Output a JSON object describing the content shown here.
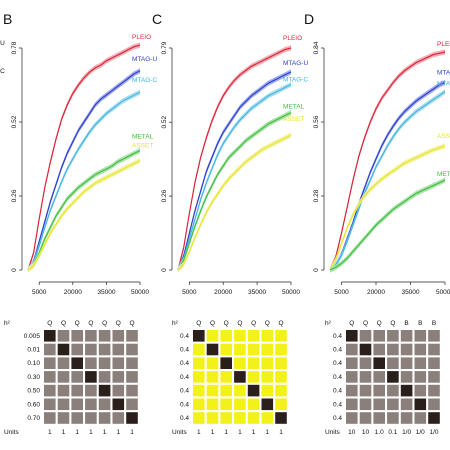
{
  "chart_data": [
    {
      "type": "line",
      "panel": "B",
      "x": [
        0,
        2500,
        5000,
        7500,
        10000,
        12500,
        15000,
        17500,
        20000,
        22500,
        25000,
        27500,
        30000,
        32500,
        35000,
        37500,
        40000,
        42500,
        45000,
        47500,
        50000
      ],
      "xticks": [
        "5000",
        "20000",
        "35000",
        "50000"
      ],
      "xtick_values": [
        5000,
        20000,
        35000,
        50000
      ],
      "yticks": [
        "0",
        "0.26",
        "0.52",
        "0.78"
      ],
      "ytick_values": [
        0,
        0.26,
        0.52,
        0.78
      ],
      "xlim": [
        0,
        50000
      ],
      "ylim": [
        0,
        0.78
      ],
      "series": [
        {
          "name": "PLEIO",
          "color": "#d7263d",
          "band": "#f3a6ae",
          "values": [
            0.0,
            0.06,
            0.18,
            0.29,
            0.38,
            0.46,
            0.53,
            0.58,
            0.62,
            0.65,
            0.675,
            0.695,
            0.71,
            0.72,
            0.735,
            0.745,
            0.755,
            0.765,
            0.775,
            0.785,
            0.79
          ]
        },
        {
          "name": "MTAG-U",
          "color": "#2e3fcc",
          "band": "#9aa6ee",
          "values": [
            0.0,
            0.03,
            0.1,
            0.17,
            0.24,
            0.3,
            0.36,
            0.41,
            0.45,
            0.49,
            0.52,
            0.55,
            0.58,
            0.6,
            0.615,
            0.63,
            0.645,
            0.66,
            0.675,
            0.69,
            0.7
          ]
        },
        {
          "name": "MTAG-C",
          "color": "#3fb6e0",
          "band": "#a8dcf0",
          "values": [
            0.0,
            0.025,
            0.085,
            0.15,
            0.21,
            0.26,
            0.31,
            0.355,
            0.39,
            0.425,
            0.455,
            0.485,
            0.51,
            0.53,
            0.55,
            0.565,
            0.58,
            0.595,
            0.605,
            0.615,
            0.625
          ]
        },
        {
          "name": "METAL",
          "color": "#3fbf3f",
          "band": "#a6e0a6",
          "values": [
            0.0,
            0.02,
            0.06,
            0.11,
            0.15,
            0.19,
            0.22,
            0.25,
            0.27,
            0.29,
            0.305,
            0.32,
            0.335,
            0.345,
            0.355,
            0.365,
            0.38,
            0.39,
            0.4,
            0.41,
            0.42
          ]
        },
        {
          "name": "ASSET",
          "color": "#e6e629",
          "band": "#f2f29a",
          "values": [
            0.0,
            0.015,
            0.05,
            0.09,
            0.13,
            0.16,
            0.19,
            0.215,
            0.235,
            0.255,
            0.275,
            0.29,
            0.305,
            0.315,
            0.325,
            0.335,
            0.345,
            0.355,
            0.365,
            0.375,
            0.385
          ]
        }
      ],
      "grid": false
    },
    {
      "type": "line",
      "panel": "C",
      "x": [
        0,
        2500,
        5000,
        7500,
        10000,
        12500,
        15000,
        17500,
        20000,
        22500,
        25000,
        27500,
        30000,
        32500,
        35000,
        37500,
        40000,
        42500,
        45000,
        47500,
        50000
      ],
      "xticks": [
        "5000",
        "20000",
        "35000",
        "50000"
      ],
      "xtick_values": [
        5000,
        20000,
        35000,
        50000
      ],
      "yticks": [
        "0",
        "0.26",
        "0.52",
        "0.79"
      ],
      "ytick_values": [
        0,
        0.263,
        0.526,
        0.79
      ],
      "xlim": [
        0,
        50000
      ],
      "ylim": [
        0,
        0.79
      ],
      "series": [
        {
          "name": "PLEIO",
          "color": "#d7263d",
          "band": "#f3a6ae",
          "values": [
            0.0,
            0.08,
            0.2,
            0.31,
            0.4,
            0.47,
            0.53,
            0.58,
            0.62,
            0.65,
            0.675,
            0.695,
            0.71,
            0.725,
            0.735,
            0.745,
            0.755,
            0.765,
            0.775,
            0.785,
            0.79
          ]
        },
        {
          "name": "MTAG-U",
          "color": "#2e3fcc",
          "band": "#9aa6ee",
          "values": [
            0.0,
            0.05,
            0.13,
            0.21,
            0.28,
            0.35,
            0.4,
            0.45,
            0.49,
            0.52,
            0.55,
            0.58,
            0.6,
            0.62,
            0.635,
            0.65,
            0.665,
            0.675,
            0.685,
            0.695,
            0.705
          ]
        },
        {
          "name": "MTAG-C",
          "color": "#3fb6e0",
          "band": "#a8dcf0",
          "values": [
            0.0,
            0.04,
            0.11,
            0.18,
            0.25,
            0.31,
            0.36,
            0.41,
            0.45,
            0.48,
            0.51,
            0.535,
            0.555,
            0.575,
            0.59,
            0.605,
            0.62,
            0.63,
            0.64,
            0.65,
            0.66
          ]
        },
        {
          "name": "METAL",
          "color": "#3fbf3f",
          "band": "#a6e0a6",
          "values": [
            0.0,
            0.035,
            0.095,
            0.155,
            0.21,
            0.26,
            0.3,
            0.34,
            0.37,
            0.4,
            0.42,
            0.44,
            0.46,
            0.475,
            0.49,
            0.505,
            0.52,
            0.53,
            0.54,
            0.55,
            0.56
          ]
        },
        {
          "name": "ASSET",
          "color": "#e6e629",
          "band": "#f2f29a",
          "values": [
            0.0,
            0.02,
            0.065,
            0.115,
            0.16,
            0.205,
            0.24,
            0.27,
            0.3,
            0.325,
            0.345,
            0.365,
            0.385,
            0.4,
            0.415,
            0.43,
            0.44,
            0.45,
            0.46,
            0.47,
            0.48
          ]
        }
      ],
      "grid": false
    },
    {
      "type": "line",
      "panel": "D",
      "x": [
        0,
        2500,
        5000,
        7500,
        10000,
        12500,
        15000,
        17500,
        20000,
        22500,
        25000,
        27500,
        30000,
        32500,
        35000,
        37500,
        40000,
        42500,
        45000,
        47500,
        50000
      ],
      "xticks": [
        "5000",
        "20000",
        "35000",
        "50000"
      ],
      "xtick_values": [
        5000,
        20000,
        35000,
        50000
      ],
      "yticks": [
        "0",
        "0.28",
        "0.56",
        "0.84"
      ],
      "ytick_values": [
        0,
        0.28,
        0.56,
        0.84
      ],
      "xlim": [
        0,
        50000
      ],
      "ylim": [
        0,
        0.84
      ],
      "series": [
        {
          "name": "PLEIO",
          "color": "#d7263d",
          "band": "#f3a6ae",
          "values": [
            0.0,
            0.05,
            0.14,
            0.24,
            0.34,
            0.43,
            0.5,
            0.56,
            0.61,
            0.65,
            0.68,
            0.71,
            0.735,
            0.755,
            0.77,
            0.785,
            0.795,
            0.805,
            0.815,
            0.82,
            0.825
          ]
        },
        {
          "name": "MTAG-U",
          "color": "#2e3fcc",
          "band": "#9aa6ee",
          "values": [
            0.0,
            0.02,
            0.06,
            0.12,
            0.18,
            0.25,
            0.31,
            0.37,
            0.42,
            0.47,
            0.51,
            0.545,
            0.575,
            0.6,
            0.62,
            0.64,
            0.655,
            0.67,
            0.685,
            0.7,
            0.71
          ]
        },
        {
          "name": "MTAG-C",
          "color": "#3fb6e0",
          "band": "#a8dcf0",
          "values": [
            0.0,
            0.02,
            0.055,
            0.11,
            0.17,
            0.23,
            0.29,
            0.34,
            0.39,
            0.43,
            0.47,
            0.505,
            0.535,
            0.56,
            0.58,
            0.6,
            0.615,
            0.63,
            0.645,
            0.66,
            0.675
          ]
        },
        {
          "name": "ASSET",
          "color": "#e6e629",
          "band": "#f2f29a",
          "values": [
            0.0,
            0.04,
            0.1,
            0.16,
            0.21,
            0.25,
            0.28,
            0.305,
            0.325,
            0.345,
            0.36,
            0.375,
            0.39,
            0.405,
            0.415,
            0.425,
            0.435,
            0.445,
            0.455,
            0.462,
            0.47
          ]
        },
        {
          "name": "METAL",
          "color": "#3fbf3f",
          "band": "#a6e0a6",
          "values": [
            0.0,
            0.01,
            0.025,
            0.045,
            0.07,
            0.095,
            0.12,
            0.145,
            0.17,
            0.19,
            0.21,
            0.23,
            0.245,
            0.26,
            0.275,
            0.29,
            0.3,
            0.31,
            0.32,
            0.33,
            0.34
          ]
        }
      ],
      "grid": false
    }
  ],
  "panels": {
    "B": {
      "letter": "B",
      "left_labels": [
        {
          "text": "-U",
          "color": "#2e3fcc"
        },
        {
          "text": "-C",
          "color": "#3fb6e0"
        }
      ],
      "label_order": [
        "PLEIO",
        "MTAG-U",
        "MTAG-C",
        "METAL",
        "ASSET"
      ],
      "series_labels": [
        "PLEIO",
        "MTAG-U",
        "MTAG-C",
        "METAL",
        "ASSET"
      ],
      "grid": {
        "header": "h²",
        "column_letters": [
          "Q",
          "Q",
          "Q",
          "Q",
          "Q",
          "Q",
          "Q"
        ],
        "column_colors": [
          "#22aa22",
          "#22aa22",
          "#22aa22",
          "#22aa22",
          "#22aa22",
          "#22aa22",
          "#22aa22"
        ],
        "row_labels": [
          "0.005",
          "0.01",
          "0.10",
          "0.30",
          "0.50",
          "0.60",
          "0.70"
        ],
        "cells": [
          [
            1,
            0,
            0,
            0,
            0,
            0,
            0
          ],
          [
            0,
            1,
            0,
            0,
            0,
            0,
            0
          ],
          [
            0,
            0,
            1,
            0,
            0,
            0,
            0
          ],
          [
            0,
            0,
            0,
            1,
            0,
            0,
            0
          ],
          [
            0,
            0,
            0,
            0,
            1,
            0,
            0
          ],
          [
            0,
            0,
            0,
            0,
            0,
            1,
            0
          ],
          [
            0,
            0,
            0,
            0,
            0,
            0,
            1
          ]
        ],
        "units_label": "Units",
        "units": [
          "1",
          "1",
          "1",
          "1",
          "1",
          "1",
          "1"
        ]
      }
    },
    "C": {
      "letter": "C",
      "left_labels": [],
      "series_labels": [
        "PLEIO",
        "MTAG-U",
        "MTAG-C",
        "METAL",
        "ASSET"
      ],
      "grid": {
        "header": "h²",
        "column_letters": [
          "Q",
          "Q",
          "Q",
          "Q",
          "Q",
          "Q",
          "Q"
        ],
        "column_colors": [
          "#22aa22",
          "#22aa22",
          "#22aa22",
          "#22aa22",
          "#22aa22",
          "#22aa22",
          "#22aa22"
        ],
        "row_labels": [
          "0.4",
          "0.4",
          "0.4",
          "0.4",
          "0.4",
          "0.4",
          "0.4"
        ],
        "cells": [
          [
            1,
            2,
            2,
            2,
            2,
            2,
            2
          ],
          [
            2,
            1,
            2,
            2,
            2,
            2,
            2
          ],
          [
            2,
            2,
            1,
            2,
            2,
            2,
            2
          ],
          [
            2,
            2,
            2,
            1,
            2,
            2,
            2
          ],
          [
            2,
            2,
            2,
            2,
            1,
            2,
            2
          ],
          [
            2,
            2,
            2,
            2,
            2,
            1,
            2
          ],
          [
            2,
            2,
            2,
            2,
            2,
            2,
            1
          ]
        ],
        "units_label": "Units",
        "units": [
          "1",
          "1",
          "1",
          "1",
          "1",
          "1",
          "1"
        ]
      }
    },
    "D": {
      "letter": "D",
      "left_labels": [],
      "series_labels": [
        "PLEIO",
        "MTA",
        "MTA",
        "ASS",
        "MET"
      ],
      "grid": {
        "header": "h²",
        "column_letters": [
          "Q",
          "Q",
          "Q",
          "Q",
          "B",
          "B",
          "B"
        ],
        "column_colors": [
          "#22aa22",
          "#22aa22",
          "#22aa22",
          "#22aa22",
          "#d7263d",
          "#d7263d",
          "#d7263d"
        ],
        "row_labels": [
          "0.4",
          "0.4",
          "0.4",
          "0.4",
          "0.4",
          "0.4",
          "0.4"
        ],
        "cells": [
          [
            1,
            0,
            0,
            0,
            0,
            0,
            0
          ],
          [
            0,
            1,
            0,
            0,
            0,
            0,
            0
          ],
          [
            0,
            0,
            1,
            0,
            0,
            0,
            0
          ],
          [
            0,
            0,
            0,
            1,
            0,
            0,
            0
          ],
          [
            0,
            0,
            0,
            0,
            1,
            0,
            0
          ],
          [
            0,
            0,
            0,
            0,
            0,
            1,
            0
          ],
          [
            0,
            0,
            0,
            0,
            0,
            0,
            1
          ]
        ],
        "units_label": "Units",
        "units": [
          "10",
          "10",
          "1.0",
          "0.1",
          "1/0",
          "1/0",
          "1/0"
        ]
      }
    }
  },
  "colors": {
    "cell_gray": "#8a7f7a",
    "cell_dark": "#2a1f1a",
    "cell_yellow": "#f2f21a",
    "axis": "#222222"
  }
}
